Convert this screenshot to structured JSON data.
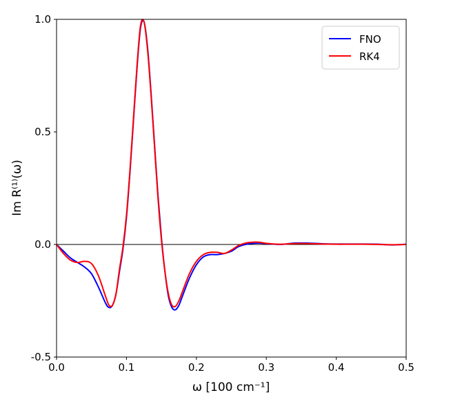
{
  "chart_data": {
    "type": "line",
    "xlabel": "ω [100 cm⁻¹]",
    "ylabel": "Im R⁽¹⁾(ω)",
    "x": [
      0,
      0.01,
      0.02,
      0.03,
      0.04,
      0.05,
      0.06,
      0.07,
      0.075,
      0.08,
      0.085,
      0.09,
      0.095,
      0.1,
      0.105,
      0.11,
      0.115,
      0.12,
      0.125,
      0.13,
      0.135,
      0.14,
      0.145,
      0.15,
      0.155,
      0.16,
      0.165,
      0.17,
      0.175,
      0.18,
      0.19,
      0.2,
      0.21,
      0.22,
      0.23,
      0.24,
      0.25,
      0.26,
      0.27,
      0.28,
      0.29,
      0.3,
      0.32,
      0.34,
      0.36,
      0.38,
      0.4,
      0.42,
      0.44,
      0.46,
      0.48,
      0.5
    ],
    "series": [
      {
        "name": "FNO",
        "color": "#0000ff",
        "values": [
          0,
          -0.03,
          -0.06,
          -0.08,
          -0.1,
          -0.13,
          -0.19,
          -0.26,
          -0.28,
          -0.27,
          -0.22,
          -0.12,
          -0.02,
          0.12,
          0.32,
          0.55,
          0.78,
          0.96,
          0.99,
          0.88,
          0.68,
          0.45,
          0.22,
          0.03,
          -0.12,
          -0.23,
          -0.28,
          -0.29,
          -0.27,
          -0.23,
          -0.15,
          -0.09,
          -0.055,
          -0.045,
          -0.045,
          -0.04,
          -0.03,
          -0.01,
          0.0,
          0.005,
          0.006,
          0.004,
          0.0,
          0.006,
          0.006,
          0.003,
          0.002,
          0.002,
          0.002,
          0.001,
          -0.002,
          0.001
        ]
      },
      {
        "name": "RK4",
        "color": "#ff0000",
        "values": [
          0,
          -0.04,
          -0.07,
          -0.08,
          -0.075,
          -0.085,
          -0.14,
          -0.23,
          -0.27,
          -0.27,
          -0.22,
          -0.11,
          -0.01,
          0.13,
          0.33,
          0.56,
          0.79,
          0.97,
          0.99,
          0.87,
          0.67,
          0.44,
          0.21,
          0.02,
          -0.12,
          -0.22,
          -0.27,
          -0.275,
          -0.25,
          -0.21,
          -0.13,
          -0.075,
          -0.045,
          -0.035,
          -0.035,
          -0.04,
          -0.025,
          -0.005,
          0.006,
          0.01,
          0.01,
          0.005,
          0.001,
          0.004,
          0.004,
          0.002,
          0.001,
          0.001,
          0.001,
          0.0,
          -0.001,
          0.0
        ]
      }
    ],
    "xlim": [
      0,
      0.5
    ],
    "ylim": [
      -0.5,
      1.0
    ],
    "xticks": [
      {
        "value": 0,
        "label": "0.0"
      },
      0.1,
      0.2,
      0.3,
      0.4,
      0.5
    ],
    "yticks": [
      -0.5,
      {
        "value": 0,
        "label": "0.0"
      },
      0.5,
      {
        "value": 1,
        "label": "1.0"
      }
    ],
    "hline": 0,
    "legend": "upper right"
  }
}
